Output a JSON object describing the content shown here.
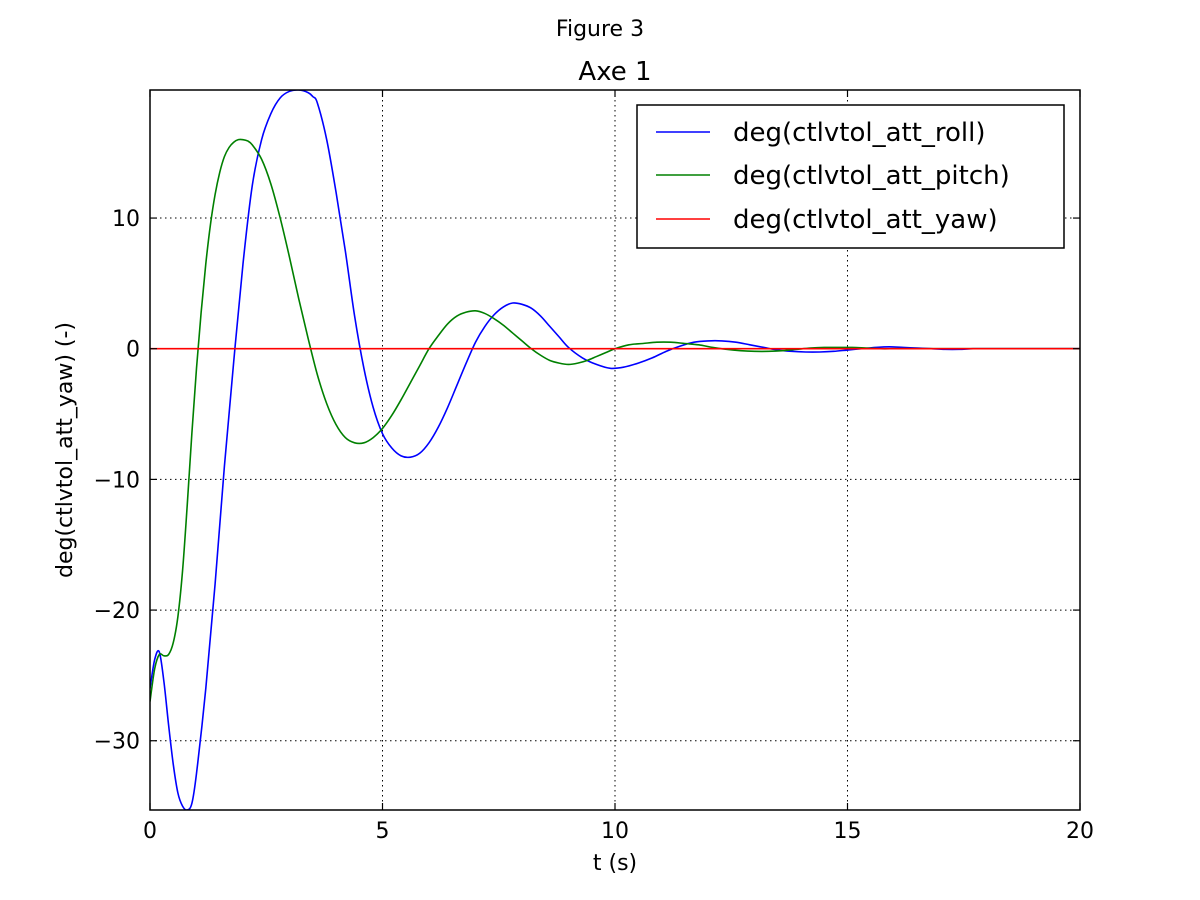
{
  "figure": {
    "suptitle": "Figure 3"
  },
  "chart_data": {
    "type": "line",
    "title": "Axe 1",
    "xlabel": "t (s)",
    "ylabel": "deg(ctlvtol_att_yaw) (-)",
    "xlim": [
      0,
      20
    ],
    "ylim": [
      -35.3,
      19.8
    ],
    "xticks": [
      0,
      5,
      10,
      15,
      20
    ],
    "xtick_labels": [
      "0",
      "5",
      "10",
      "15",
      "20"
    ],
    "yticks": [
      -30,
      -20,
      -10,
      0,
      10
    ],
    "ytick_labels": [
      "−30",
      "−20",
      "−10",
      "0",
      "10"
    ],
    "grid": true,
    "legend_position": "top-right",
    "series": [
      {
        "name": "deg(ctlvtol_att_roll)",
        "color": "#0000ff",
        "x": [
          0,
          0.1,
          0.2,
          0.3,
          0.4,
          0.5,
          0.6,
          0.7,
          0.8,
          0.9,
          1.0,
          1.2,
          1.4,
          1.6,
          1.8,
          2.0,
          2.2,
          2.4,
          2.6,
          2.8,
          3.0,
          3.2,
          3.4,
          3.5,
          3.6,
          3.8,
          4.0,
          4.2,
          4.4,
          4.6,
          4.8,
          5.0,
          5.2,
          5.4,
          5.6,
          5.8,
          6.0,
          6.2,
          6.4,
          6.6,
          6.8,
          7.0,
          7.2,
          7.4,
          7.6,
          7.8,
          8.0,
          8.2,
          8.4,
          8.6,
          8.8,
          9.0,
          9.3,
          9.6,
          9.9,
          10.2,
          10.5,
          10.8,
          11.1,
          11.4,
          11.7,
          12.0,
          12.3,
          12.6,
          12.9,
          13.2,
          13.5,
          13.8,
          14.1,
          14.4,
          14.7,
          15.0,
          15.3,
          15.6,
          15.9,
          16.2,
          16.5,
          16.8,
          17.1,
          17.4,
          17.7,
          18.0,
          18.3,
          18.6,
          18.9,
          19.2,
          19.5,
          19.8,
          20.0
        ],
        "y": [
          -26.0,
          -23.8,
          -23.2,
          -25.5,
          -28.8,
          -31.8,
          -34.0,
          -35.0,
          -35.3,
          -34.8,
          -32.5,
          -26.0,
          -18.0,
          -9.0,
          -1.0,
          6.5,
          12.5,
          16.0,
          18.0,
          19.2,
          19.7,
          19.8,
          19.6,
          19.3,
          18.8,
          16.0,
          12.0,
          7.5,
          2.5,
          -1.5,
          -4.5,
          -6.5,
          -7.6,
          -8.2,
          -8.3,
          -8.0,
          -7.2,
          -6.0,
          -4.5,
          -2.8,
          -1.1,
          0.5,
          1.7,
          2.6,
          3.2,
          3.5,
          3.4,
          3.1,
          2.5,
          1.7,
          0.9,
          0.1,
          -0.7,
          -1.2,
          -1.5,
          -1.4,
          -1.1,
          -0.7,
          -0.2,
          0.2,
          0.5,
          0.6,
          0.6,
          0.5,
          0.3,
          0.1,
          -0.1,
          -0.2,
          -0.25,
          -0.25,
          -0.2,
          -0.1,
          0.0,
          0.1,
          0.15,
          0.1,
          0.05,
          0.0,
          -0.05,
          -0.05,
          0.0,
          0.0,
          0.0,
          0.0,
          0.0,
          0.0,
          0.0,
          0.0,
          0.0
        ]
      },
      {
        "name": "deg(ctlvtol_att_pitch)",
        "color": "#008000",
        "x": [
          0,
          0.1,
          0.2,
          0.3,
          0.4,
          0.5,
          0.6,
          0.7,
          0.8,
          0.9,
          1.0,
          1.1,
          1.2,
          1.3,
          1.4,
          1.5,
          1.6,
          1.7,
          1.8,
          1.9,
          2.0,
          2.1,
          2.2,
          2.4,
          2.6,
          2.8,
          3.0,
          3.2,
          3.4,
          3.6,
          3.8,
          4.0,
          4.2,
          4.4,
          4.6,
          4.8,
          5.0,
          5.2,
          5.4,
          5.6,
          5.8,
          6.0,
          6.2,
          6.4,
          6.6,
          6.8,
          7.0,
          7.2,
          7.4,
          7.6,
          7.8,
          8.0,
          8.2,
          8.4,
          8.6,
          8.8,
          9.0,
          9.2,
          9.4,
          9.6,
          9.8,
          10.0,
          10.3,
          10.6,
          10.9,
          11.2,
          11.5,
          11.8,
          12.1,
          12.4,
          12.7,
          13.0,
          13.3,
          13.6,
          13.9,
          14.2,
          14.5,
          14.8,
          15.1,
          15.4,
          15.7,
          16.0,
          16.3,
          16.6,
          16.9,
          17.2,
          17.5,
          17.8,
          18.1,
          18.4,
          18.7,
          19.0,
          19.3,
          19.6,
          20.0
        ],
        "y": [
          -27.0,
          -24.5,
          -23.4,
          -23.5,
          -23.4,
          -22.5,
          -20.5,
          -17.0,
          -12.0,
          -6.5,
          -1.5,
          2.8,
          6.5,
          9.5,
          11.8,
          13.5,
          14.7,
          15.4,
          15.8,
          16.0,
          16.0,
          15.9,
          15.6,
          14.5,
          12.6,
          10.0,
          7.0,
          3.8,
          0.8,
          -2.0,
          -4.2,
          -5.8,
          -6.8,
          -7.2,
          -7.2,
          -6.8,
          -6.1,
          -5.1,
          -3.9,
          -2.6,
          -1.3,
          0.0,
          1.0,
          1.9,
          2.5,
          2.8,
          2.9,
          2.7,
          2.3,
          1.8,
          1.2,
          0.6,
          0.0,
          -0.5,
          -0.9,
          -1.1,
          -1.2,
          -1.1,
          -0.9,
          -0.6,
          -0.3,
          0.0,
          0.3,
          0.4,
          0.5,
          0.5,
          0.4,
          0.3,
          0.1,
          -0.05,
          -0.15,
          -0.2,
          -0.2,
          -0.15,
          -0.05,
          0.05,
          0.1,
          0.1,
          0.1,
          0.05,
          0.0,
          0.0,
          0.0,
          0.0,
          0.0,
          0.0,
          0.0,
          0.0,
          0.0,
          0.0,
          0.0,
          0.0,
          0.0,
          0.0,
          0.0
        ]
      },
      {
        "name": "deg(ctlvtol_att_yaw)",
        "color": "#ff0000",
        "x": [
          0,
          20
        ],
        "y": [
          0,
          0
        ]
      }
    ]
  }
}
